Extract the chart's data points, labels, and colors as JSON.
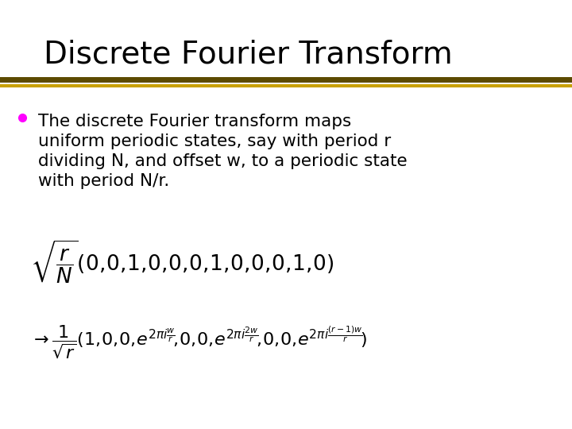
{
  "title": "Discrete Fourier Transform",
  "title_fontsize": 28,
  "bg_color": "#ffffff",
  "title_line_color1": "#5C4A00",
  "title_line_color2": "#C8A000",
  "bullet_color": "#FF00FF",
  "bullet_text_line1": "The discrete Fourier transform maps",
  "bullet_text_line2": "uniform periodic states, say with period r",
  "bullet_text_line3": "dividing N, and offset w, to a periodic state",
  "bullet_text_line4": "with period N/r.",
  "bullet_fontsize": 15.5,
  "formula1_fontsize": 16,
  "formula2_fontsize": 14
}
